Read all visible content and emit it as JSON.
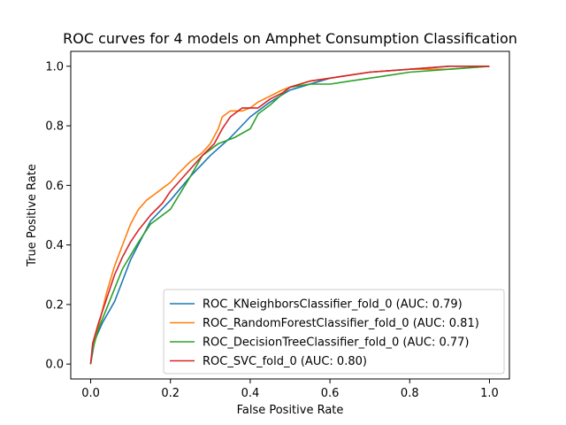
{
  "chart_data": {
    "type": "line",
    "title": "ROC curves for 4 models on Amphet Consumption Classification",
    "xlabel": "False Positive Rate",
    "ylabel": "True Positive Rate",
    "xlim": [
      -0.05,
      1.05
    ],
    "ylim": [
      -0.05,
      1.05
    ],
    "xticks": [
      "0.0",
      "0.2",
      "0.4",
      "0.6",
      "0.8",
      "1.0"
    ],
    "yticks": [
      "0.0",
      "0.2",
      "0.4",
      "0.6",
      "0.8",
      "1.0"
    ],
    "grid": false,
    "legend_position": "lower-right",
    "series": [
      {
        "name": "ROC_KNeighborsClassifier_fold_0 (AUC: 0.79)",
        "color": "#1f77b4",
        "x": [
          0.0,
          0.01,
          0.03,
          0.06,
          0.1,
          0.15,
          0.2,
          0.25,
          0.3,
          0.35,
          0.4,
          0.45,
          0.5,
          0.6,
          0.7,
          0.8,
          0.9,
          1.0
        ],
        "y": [
          0.0,
          0.08,
          0.14,
          0.21,
          0.35,
          0.48,
          0.55,
          0.63,
          0.7,
          0.76,
          0.83,
          0.88,
          0.92,
          0.96,
          0.98,
          0.99,
          1.0,
          1.0
        ]
      },
      {
        "name": "ROC_RandomForestClassifier_fold_0 (AUC: 0.81)",
        "color": "#ff7f0e",
        "x": [
          0.0,
          0.005,
          0.02,
          0.04,
          0.06,
          0.08,
          0.1,
          0.12,
          0.14,
          0.16,
          0.18,
          0.2,
          0.22,
          0.25,
          0.28,
          0.3,
          0.32,
          0.33,
          0.34,
          0.35,
          0.38,
          0.4,
          0.42,
          0.45,
          0.48,
          0.5,
          0.55,
          0.6,
          0.7,
          0.8,
          0.9,
          1.0
        ],
        "y": [
          0.0,
          0.05,
          0.13,
          0.24,
          0.33,
          0.4,
          0.47,
          0.52,
          0.55,
          0.57,
          0.59,
          0.61,
          0.64,
          0.68,
          0.71,
          0.74,
          0.79,
          0.83,
          0.84,
          0.85,
          0.85,
          0.86,
          0.88,
          0.9,
          0.92,
          0.93,
          0.95,
          0.96,
          0.98,
          0.99,
          0.99,
          1.0
        ]
      },
      {
        "name": "ROC_DecisionTreeClassifier_fold_0 (AUC: 0.77)",
        "color": "#2ca02c",
        "x": [
          0.0,
          0.005,
          0.02,
          0.05,
          0.08,
          0.12,
          0.15,
          0.2,
          0.25,
          0.28,
          0.32,
          0.36,
          0.4,
          0.42,
          0.45,
          0.5,
          0.55,
          0.6,
          0.65,
          0.7,
          0.75,
          0.8,
          0.9,
          1.0
        ],
        "y": [
          0.0,
          0.05,
          0.12,
          0.22,
          0.32,
          0.41,
          0.47,
          0.52,
          0.63,
          0.7,
          0.74,
          0.76,
          0.79,
          0.84,
          0.87,
          0.93,
          0.94,
          0.94,
          0.95,
          0.96,
          0.97,
          0.98,
          0.99,
          1.0
        ]
      },
      {
        "name": "ROC_SVC_fold_0 (AUC: 0.80)",
        "color": "#d62728",
        "x": [
          0.0,
          0.005,
          0.02,
          0.04,
          0.06,
          0.08,
          0.1,
          0.12,
          0.15,
          0.18,
          0.2,
          0.24,
          0.28,
          0.31,
          0.33,
          0.35,
          0.38,
          0.4,
          0.42,
          0.45,
          0.48,
          0.5,
          0.55,
          0.6,
          0.7,
          0.8,
          0.9,
          1.0
        ],
        "y": [
          0.0,
          0.07,
          0.14,
          0.22,
          0.3,
          0.36,
          0.41,
          0.45,
          0.5,
          0.54,
          0.58,
          0.64,
          0.7,
          0.74,
          0.79,
          0.83,
          0.86,
          0.86,
          0.86,
          0.89,
          0.91,
          0.93,
          0.95,
          0.96,
          0.98,
          0.99,
          1.0,
          1.0
        ]
      }
    ]
  }
}
